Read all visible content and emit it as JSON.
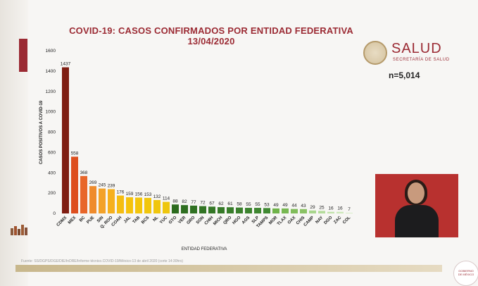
{
  "header": {
    "title_line1": "COVID-19: CASOS CONFIRMADOS POR ENTIDAD FEDERATIVA",
    "title_line2": "13/04/2020"
  },
  "logo": {
    "name": "SALUD",
    "subtitle": "SECRETARÍA DE SALUD"
  },
  "total_label": "n=5,014",
  "source_note": "Fuente: SS/DGPS/DGE/DIE/InDRE/Informe técnico.COVID-19/México-13 de abril 2020 (corte 14:30hrs)",
  "badge_text": "GOBIERNO DE MÉXICO",
  "colors": {
    "accent": "#9b2a33",
    "gold": "#c8b78c"
  },
  "chart_data": {
    "type": "bar",
    "title": "COVID-19: CASOS CONFIRMADOS POR ENTIDAD FEDERATIVA",
    "subtitle": "13/04/2020",
    "xlabel": "ENTIDAD FEDERATIVA",
    "ylabel": "CASOS POSITIVOS A COVID-19",
    "ylim": [
      0,
      1600
    ],
    "yticks": [
      0,
      200,
      400,
      600,
      800,
      1000,
      1200,
      1400,
      1600
    ],
    "grid": false,
    "categories": [
      "CDMX",
      "MEX",
      "BC",
      "PUE",
      "SIN",
      "Q. ROO",
      "COAH",
      "JAL",
      "TAB",
      "BCS",
      "NL",
      "YUC",
      "GTO",
      "VER",
      "GRO",
      "SON",
      "CHIH",
      "MICH",
      "QRO",
      "HGO",
      "AGS",
      "SLP",
      "TAMPS",
      "MOR",
      "TLAX",
      "OAX",
      "CHIS",
      "CAMP",
      "NAY",
      "DGO",
      "ZAC",
      "COL"
    ],
    "values": [
      1437,
      558,
      368,
      269,
      245,
      239,
      176,
      159,
      156,
      153,
      132,
      114,
      88,
      82,
      77,
      72,
      67,
      62,
      61,
      58,
      55,
      55,
      53,
      49,
      49,
      44,
      43,
      29,
      25,
      16,
      16,
      7
    ],
    "colors": [
      "#7f1d12",
      "#dd4f1f",
      "#e8662a",
      "#ef8b2c",
      "#f3a229",
      "#f6b01d",
      "#f5bd12",
      "#f5c20c",
      "#f3c50b",
      "#f1c60c",
      "#f0c60c",
      "#eec60d",
      "#2c6b1e",
      "#2e6e20",
      "#307122",
      "#327424",
      "#347726",
      "#367a28",
      "#387d2a",
      "#3a802c",
      "#3c832e",
      "#3e8630",
      "#408932",
      "#6fb349",
      "#78b852",
      "#81bd5b",
      "#8ac264",
      "#a8d68c",
      "#b4dc9b",
      "#c0e2aa",
      "#cce8b9",
      "#d8eec8"
    ]
  }
}
